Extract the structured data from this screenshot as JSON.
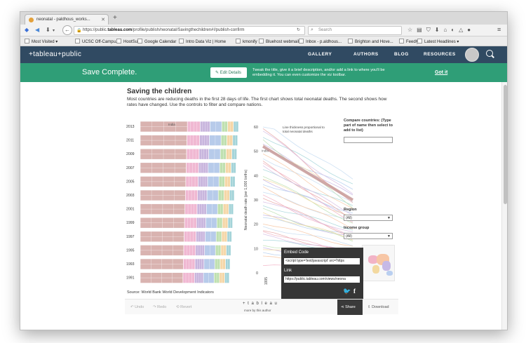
{
  "browser": {
    "tab_title": "neonatal - paldhous_works...",
    "url_prefix": "https://public.",
    "url_host": "tableau.com",
    "url_path": "/profile/publish/neonatal/Savingthechildren#!/publish-confirm",
    "search_placeholder": "Search",
    "bookmarks": [
      {
        "label": "Most Visited ▾"
      },
      {
        "label": "UCSC Off-Campu..."
      },
      {
        "label": "HootSuite"
      },
      {
        "label": "Google Calendar"
      },
      {
        "label": "Intro Data Viz | Home"
      },
      {
        "label": "kmonify"
      },
      {
        "label": "Bluehost webmail"
      },
      {
        "label": "Inbox - p.aldhous..."
      },
      {
        "label": "Brighton and Hove..."
      },
      {
        "label": "Feedly"
      },
      {
        "label": "Latest Headlines ▾"
      }
    ]
  },
  "tableau_nav": {
    "logo": "+tableau+public",
    "links": [
      "GALLERY",
      "AUTHORS",
      "BLOG",
      "RESOURCES"
    ]
  },
  "save_bar": {
    "title": "Save Complete.",
    "edit_label": "Edit Details",
    "description": "Tweak the title, give it a brief description, and/or add a link to where you'll be embedding it. You can even customize the viz toolbar.",
    "got_it": "Got it"
  },
  "viz": {
    "title": "Saving the children",
    "description": "Most countries are reducing deaths in the first 28 days of life. The first chart shows total neonatal deaths. The second shows how rates have changed. Use the controls to filter and compare nations.",
    "source": "Source: World Bank World Development Indicators",
    "treemap_annotation": "India",
    "line_annotation": "Line thickness proportional to total neonatal deaths",
    "line_label_india": "India",
    "controls": {
      "compare_label": "Compare countries: (Type part of name then select to add to list)",
      "region_label": "Region",
      "region_value": "(All)",
      "income_label": "Income group",
      "income_value": "(All)"
    },
    "footer": {
      "undo": "Undo",
      "redo": "Redo",
      "revert": "Revert",
      "brand": "+ t a b l e a u",
      "more_by": "more by this author",
      "share": "Share",
      "download": "Download"
    }
  },
  "share_popup": {
    "embed_label": "Embed Code",
    "embed_value": "<script type='text/javascript' src='https",
    "link_label": "Link",
    "link_value": "https://public.tableau.com/views/neona"
  },
  "chart_data": {
    "type": "line",
    "title": "",
    "ylabel": "Neonatal death rate (per 1,000 births)",
    "xlabel": "",
    "ylim": [
      0,
      60
    ],
    "yticks": [
      "60",
      "50",
      "40",
      "30",
      "20",
      "10",
      "0"
    ],
    "x_tick_labels": [
      "1995"
    ],
    "years": [
      "2013",
      "2011",
      "2009",
      "2007",
      "2005",
      "2003",
      "2001",
      "1999",
      "1997",
      "1995",
      "1993",
      "1991"
    ],
    "series_count_estimate": 40,
    "highlight_series": {
      "name": "India",
      "start": 52,
      "end": 30
    }
  },
  "colors": {
    "nav": "#304a62",
    "green": "#2f9e77",
    "treemap": [
      "#d9b3b0",
      "#f0b8d2",
      "#c8b5dd",
      "#b7cbea",
      "#bfe0b0",
      "#f5d7a8",
      "#a3d3d8"
    ]
  }
}
